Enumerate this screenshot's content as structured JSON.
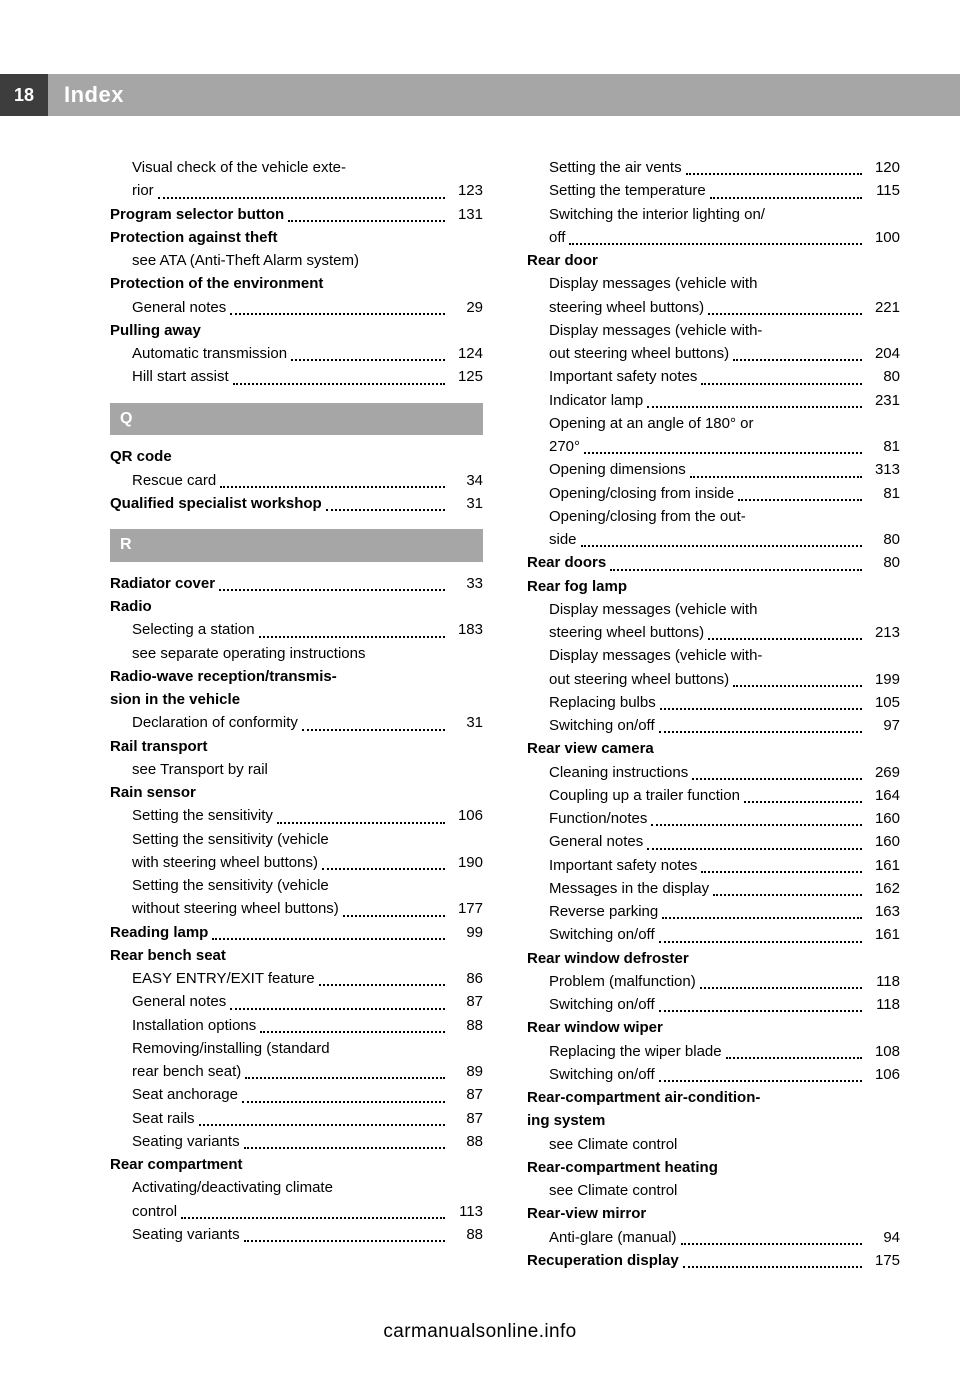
{
  "header": {
    "page_number": "18",
    "title": "Index"
  },
  "footer": "carmanualsonline.info",
  "letters": {
    "Q": "Q",
    "R": "R"
  },
  "left": [
    {
      "t": "sub",
      "label": "Visual check of the vehicle exte-"
    },
    {
      "t": "subp",
      "label": "rior",
      "page": "123"
    },
    {
      "t": "mainp",
      "label": "Program selector button",
      "page": "131"
    },
    {
      "t": "main",
      "label": "Protection against theft"
    },
    {
      "t": "sub",
      "label": "see ATA (Anti-Theft Alarm system)"
    },
    {
      "t": "main",
      "label": "Protection of the environment"
    },
    {
      "t": "subp",
      "label": "General notes",
      "page": "29"
    },
    {
      "t": "main",
      "label": "Pulling away"
    },
    {
      "t": "subp",
      "label": "Automatic transmission",
      "page": "124"
    },
    {
      "t": "subp",
      "label": "Hill start assist",
      "page": "125"
    },
    {
      "t": "letter",
      "key": "Q"
    },
    {
      "t": "main",
      "label": "QR code"
    },
    {
      "t": "subp",
      "label": "Rescue card",
      "page": "34"
    },
    {
      "t": "mainp",
      "label": "Qualified specialist workshop",
      "page": "31"
    },
    {
      "t": "letter",
      "key": "R"
    },
    {
      "t": "mainp",
      "label": "Radiator cover",
      "page": "33"
    },
    {
      "t": "main",
      "label": "Radio"
    },
    {
      "t": "subp",
      "label": "Selecting a station",
      "page": "183"
    },
    {
      "t": "sub",
      "label": "see separate operating instructions"
    },
    {
      "t": "main",
      "label": "Radio-wave reception/transmis-"
    },
    {
      "t": "main",
      "label": "sion in the vehicle"
    },
    {
      "t": "subp",
      "label": "Declaration of conformity",
      "page": "31"
    },
    {
      "t": "main",
      "label": "Rail transport"
    },
    {
      "t": "sub",
      "label": "see Transport by rail"
    },
    {
      "t": "main",
      "label": "Rain sensor"
    },
    {
      "t": "subp",
      "label": "Setting the sensitivity",
      "page": "106"
    },
    {
      "t": "sub",
      "label": "Setting the sensitivity (vehicle"
    },
    {
      "t": "subp",
      "label": "with steering wheel buttons)",
      "page": "190"
    },
    {
      "t": "sub",
      "label": "Setting the sensitivity (vehicle"
    },
    {
      "t": "subp",
      "label": "without steering wheel buttons)",
      "page": "177"
    },
    {
      "t": "mainp",
      "label": "Reading lamp",
      "page": "99"
    },
    {
      "t": "main",
      "label": "Rear bench seat"
    },
    {
      "t": "subp",
      "label": "EASY ENTRY/EXIT feature",
      "page": "86"
    },
    {
      "t": "subp",
      "label": "General notes",
      "page": "87"
    },
    {
      "t": "subp",
      "label": "Installation options",
      "page": "88"
    },
    {
      "t": "sub",
      "label": "Removing/installing (standard"
    },
    {
      "t": "subp",
      "label": "rear bench seat)",
      "page": "89"
    },
    {
      "t": "subp",
      "label": "Seat anchorage",
      "page": "87"
    },
    {
      "t": "subp",
      "label": "Seat rails",
      "page": "87"
    },
    {
      "t": "subp",
      "label": "Seating variants",
      "page": "88"
    },
    {
      "t": "main",
      "label": "Rear compartment"
    },
    {
      "t": "sub",
      "label": "Activating/deactivating climate"
    },
    {
      "t": "subp",
      "label": "control",
      "page": "113"
    },
    {
      "t": "subp",
      "label": "Seating variants",
      "page": "88"
    }
  ],
  "right": [
    {
      "t": "subp",
      "label": "Setting the air vents",
      "page": "120"
    },
    {
      "t": "subp",
      "label": "Setting the temperature",
      "page": "115"
    },
    {
      "t": "sub",
      "label": "Switching the interior lighting on/"
    },
    {
      "t": "subp",
      "label": "off",
      "page": "100"
    },
    {
      "t": "main",
      "label": "Rear door"
    },
    {
      "t": "sub",
      "label": "Display messages (vehicle with"
    },
    {
      "t": "subp",
      "label": "steering wheel buttons)",
      "page": "221"
    },
    {
      "t": "sub",
      "label": "Display messages (vehicle with-"
    },
    {
      "t": "subp",
      "label": "out steering wheel buttons)",
      "page": "204"
    },
    {
      "t": "subp",
      "label": "Important safety notes",
      "page": "80"
    },
    {
      "t": "subp",
      "label": "Indicator lamp",
      "page": "231"
    },
    {
      "t": "sub",
      "label": "Opening at an angle of 180° or"
    },
    {
      "t": "subp",
      "label": "270°",
      "page": "81"
    },
    {
      "t": "subp",
      "label": "Opening dimensions",
      "page": "313"
    },
    {
      "t": "subp",
      "label": "Opening/closing from inside",
      "page": "81"
    },
    {
      "t": "sub",
      "label": "Opening/closing from the out-"
    },
    {
      "t": "subp",
      "label": "side",
      "page": "80"
    },
    {
      "t": "mainp",
      "label": "Rear doors",
      "page": "80"
    },
    {
      "t": "main",
      "label": "Rear fog lamp"
    },
    {
      "t": "sub",
      "label": "Display messages (vehicle with"
    },
    {
      "t": "subp",
      "label": "steering wheel buttons)",
      "page": "213"
    },
    {
      "t": "sub",
      "label": "Display messages (vehicle with-"
    },
    {
      "t": "subp",
      "label": "out steering wheel buttons)",
      "page": "199"
    },
    {
      "t": "subp",
      "label": "Replacing bulbs",
      "page": "105"
    },
    {
      "t": "subp",
      "label": "Switching on/off",
      "page": "97"
    },
    {
      "t": "main",
      "label": "Rear view camera"
    },
    {
      "t": "subp",
      "label": "Cleaning instructions",
      "page": "269"
    },
    {
      "t": "subp",
      "label": "Coupling up a trailer function",
      "page": "164"
    },
    {
      "t": "subp",
      "label": "Function/notes",
      "page": "160"
    },
    {
      "t": "subp",
      "label": "General notes",
      "page": "160"
    },
    {
      "t": "subp",
      "label": "Important safety notes",
      "page": "161"
    },
    {
      "t": "subp",
      "label": "Messages in the display",
      "page": "162"
    },
    {
      "t": "subp",
      "label": "Reverse parking",
      "page": "163"
    },
    {
      "t": "subp",
      "label": "Switching on/off",
      "page": "161"
    },
    {
      "t": "main",
      "label": "Rear window defroster"
    },
    {
      "t": "subp",
      "label": "Problem (malfunction)",
      "page": "118"
    },
    {
      "t": "subp",
      "label": "Switching on/off",
      "page": "118"
    },
    {
      "t": "main",
      "label": "Rear window wiper"
    },
    {
      "t": "subp",
      "label": "Replacing the wiper blade",
      "page": "108"
    },
    {
      "t": "subp",
      "label": "Switching on/off",
      "page": "106"
    },
    {
      "t": "main",
      "label": "Rear-compartment air-condition-"
    },
    {
      "t": "main",
      "label": "ing system"
    },
    {
      "t": "sub",
      "label": "see Climate control"
    },
    {
      "t": "main",
      "label": "Rear-compartment heating"
    },
    {
      "t": "sub",
      "label": "see Climate control"
    },
    {
      "t": "main",
      "label": "Rear-view mirror"
    },
    {
      "t": "subp",
      "label": "Anti-glare (manual)",
      "page": "94"
    },
    {
      "t": "mainp",
      "label": "Recuperation display",
      "page": "175"
    }
  ]
}
